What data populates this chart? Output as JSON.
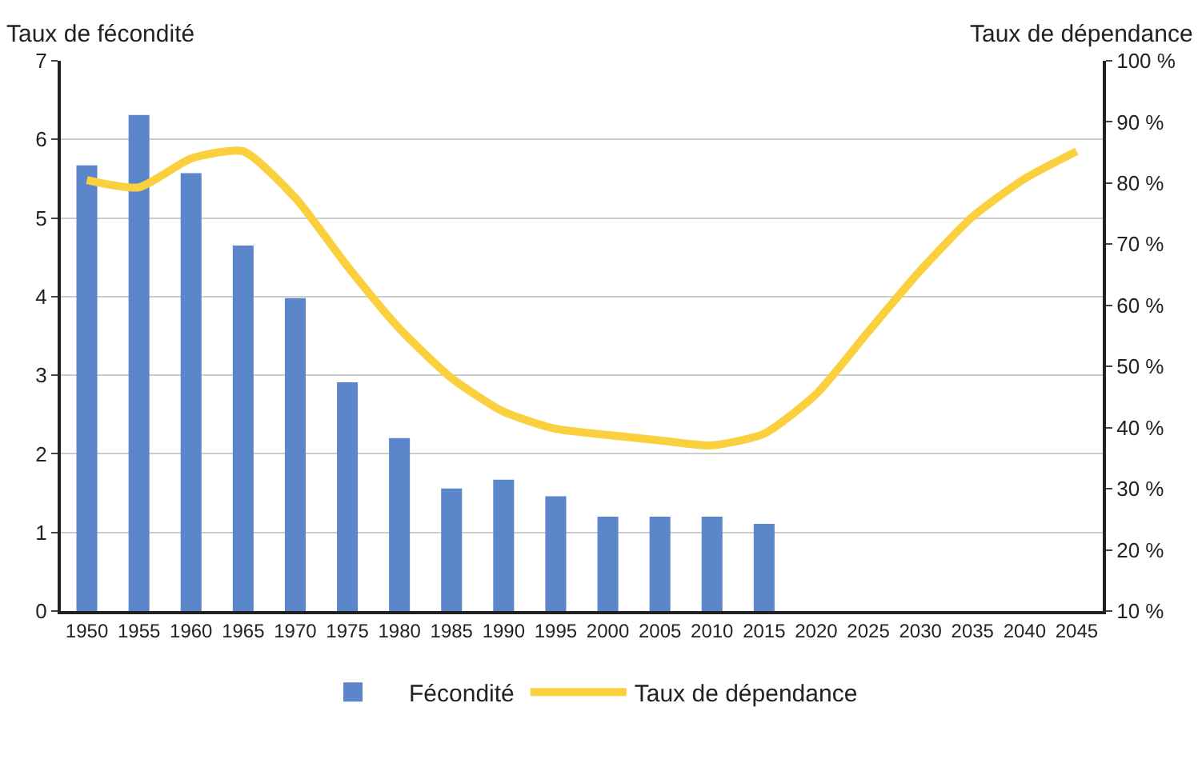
{
  "chart_data": {
    "type": "bar",
    "ylabel": "Taux de fécondité",
    "y2label": "Taux de dépendance",
    "categories": [
      "1950",
      "1955",
      "1960",
      "1965",
      "1970",
      "1975",
      "1980",
      "1985",
      "1990",
      "1995",
      "2000",
      "2005",
      "2010",
      "2015",
      "2020",
      "2025",
      "2030",
      "2035",
      "2040",
      "2045"
    ],
    "series": [
      {
        "name": "Fécondité",
        "color": "#5b86c9",
        "values": [
          5.67,
          6.31,
          5.57,
          4.65,
          3.98,
          2.91,
          2.2,
          1.56,
          1.67,
          1.46,
          1.2,
          1.2,
          1.2,
          1.11,
          null,
          null,
          null,
          null,
          null,
          null
        ]
      },
      {
        "name": "Taux de dépendance",
        "type": "line",
        "axis": "y2",
        "color": "#fbd03e",
        "line_style": "solid",
        "values": [
          80.5,
          79.3,
          84,
          85.2,
          77.6,
          66.4,
          56.2,
          48.1,
          42.6,
          39.8,
          38.8,
          37.9,
          37.1,
          39,
          45.5,
          55.7,
          65.7,
          74.5,
          80.7,
          85.2
        ]
      }
    ],
    "ylim": [
      0,
      7
    ],
    "yticks": [
      0,
      1,
      2,
      3,
      4,
      5,
      6,
      7
    ],
    "y2lim": [
      10,
      100
    ],
    "y2ticks": [
      {
        "value": 10,
        "label": "10 %"
      },
      {
        "value": 20,
        "label": "20 %"
      },
      {
        "value": 30,
        "label": "30 %"
      },
      {
        "value": 40,
        "label": "40 %"
      },
      {
        "value": 50,
        "label": "50 %"
      },
      {
        "value": 60,
        "label": "60 %"
      },
      {
        "value": 70,
        "label": "70 %"
      },
      {
        "value": 80,
        "label": "80 %"
      },
      {
        "value": 90,
        "label": "90 %"
      },
      {
        "value": 100,
        "label": "100 %"
      }
    ],
    "grid": "y",
    "legend": "bottom",
    "marker": "none"
  }
}
